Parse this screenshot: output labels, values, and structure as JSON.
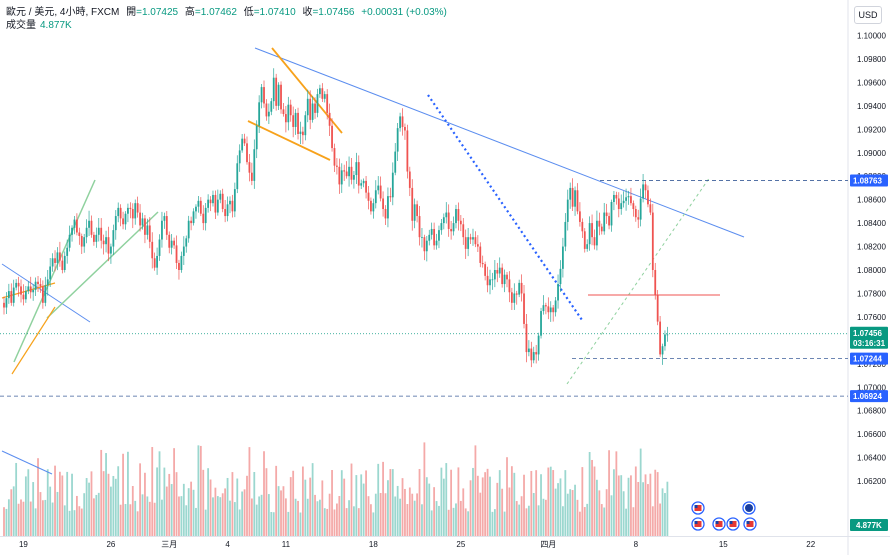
{
  "legend": {
    "symbol": "歐元 / 美元, 4小時, FXCM",
    "open_label": "開",
    "open": "=1.07425",
    "high_label": "高",
    "high": "=1.07462",
    "low_label": "低",
    "low": "=1.07410",
    "close_label": "收",
    "close": "=1.07456",
    "change": "+0.00031 (+0.03%)",
    "volume_label": "成交量",
    "volume_value": "4.877K"
  },
  "currency_unit": "USD",
  "colors": {
    "up": "#26a69a",
    "down": "#ef5350",
    "vol_up": "#9bd7cf",
    "vol_down": "#f4a9a8",
    "trendline": "#5b8def",
    "channel": "#8fd19e",
    "wedge": "#f7a21b",
    "tag_blue": "#2962ff",
    "tag_green": "#089981",
    "level_red": "#ef5350"
  },
  "chart_data": {
    "type": "candlestick",
    "y_axis": {
      "min": 1.06,
      "max": 1.1,
      "ticks": [
        "1.10000",
        "1.09800",
        "1.09600",
        "1.09400",
        "1.09200",
        "1.09000",
        "1.08800",
        "1.08600",
        "1.08400",
        "1.08200",
        "1.08000",
        "1.07800",
        "1.07600",
        "1.07400",
        "1.07200",
        "1.07000",
        "1.06800",
        "1.06600",
        "1.06400",
        "1.06200"
      ]
    },
    "x_axis": {
      "tick_labels": [
        {
          "label": "19",
          "bar": 8
        },
        {
          "label": "26",
          "bar": 44
        },
        {
          "label": "三月",
          "bar": 68
        },
        {
          "label": "4",
          "bar": 92
        },
        {
          "label": "11",
          "bar": 116
        },
        {
          "label": "18",
          "bar": 152
        },
        {
          "label": "25",
          "bar": 188
        },
        {
          "label": "四月",
          "bar": 224
        },
        {
          "label": "8",
          "bar": 260
        },
        {
          "label": "15",
          "bar": 296
        },
        {
          "label": "22",
          "bar": 332
        }
      ]
    },
    "closes": [
      1.0768,
      1.0776,
      1.0782,
      1.0772,
      1.0785,
      1.0789,
      1.0786,
      1.0779,
      1.0775,
      1.0782,
      1.0786,
      1.0781,
      1.0783,
      1.079,
      1.0788,
      1.0786,
      1.0772,
      1.0787,
      1.0792,
      1.0803,
      1.081,
      1.0806,
      1.0815,
      1.0808,
      1.08,
      1.0812,
      1.0819,
      1.083,
      1.0836,
      1.0843,
      1.0832,
      1.0829,
      1.082,
      1.0828,
      1.0836,
      1.0842,
      1.083,
      1.0824,
      1.083,
      1.0836,
      1.0825,
      1.0822,
      1.0828,
      1.0814,
      1.082,
      1.0834,
      1.0846,
      1.0853,
      1.0844,
      1.0839,
      1.0848,
      1.0853,
      1.0852,
      1.0844,
      1.0857,
      1.0849,
      1.0838,
      1.0844,
      1.083,
      1.0838,
      1.0824,
      1.081,
      1.0802,
      1.0812,
      1.0826,
      1.0842,
      1.0846,
      1.083,
      1.0819,
      1.0825,
      1.0821,
      1.0806,
      1.08,
      1.0812,
      1.082,
      1.0827,
      1.0842,
      1.084,
      1.085,
      1.0854,
      1.0859,
      1.0848,
      1.084,
      1.0853,
      1.086,
      1.0857,
      1.0864,
      1.0849,
      1.086,
      1.0865,
      1.0852,
      1.0846,
      1.0856,
      1.0859,
      1.085,
      1.0869,
      1.0891,
      1.0902,
      1.0912,
      1.0908,
      1.0892,
      1.0883,
      1.0876,
      1.0903,
      1.0923,
      1.0943,
      1.0956,
      1.0942,
      1.0931,
      1.0935,
      1.0944,
      1.0964,
      1.094,
      1.0958,
      1.0937,
      1.0933,
      1.0926,
      1.0941,
      1.0932,
      1.0922,
      1.0934,
      1.0916,
      1.0918,
      1.0915,
      1.0932,
      1.0946,
      1.0928,
      1.0942,
      1.0934,
      1.095,
      1.0955,
      1.0946,
      1.095,
      1.0934,
      1.0923,
      1.0904,
      1.0889,
      1.0888,
      1.0873,
      1.0885,
      1.0884,
      1.088,
      1.0888,
      1.0877,
      1.0881,
      1.0892,
      1.0872,
      1.0874,
      1.0876,
      1.0866,
      1.0859,
      1.085,
      1.0857,
      1.0868,
      1.0872,
      1.0861,
      1.0852,
      1.0844,
      1.0863,
      1.0862,
      1.0883,
      1.0901,
      1.0921,
      1.0931,
      1.0922,
      1.0919,
      1.0884,
      1.087,
      1.0842,
      1.0856,
      1.0846,
      1.0828,
      1.0828,
      1.0816,
      1.0825,
      1.083,
      1.0835,
      1.0821,
      1.0825,
      1.0834,
      1.084,
      1.0845,
      1.0849,
      1.0835,
      1.0833,
      1.084,
      1.0852,
      1.0842,
      1.0839,
      1.0828,
      1.0818,
      1.0828,
      1.0826,
      1.0828,
      1.0822,
      1.082,
      1.0806,
      1.0805,
      1.0795,
      1.0787,
      1.0792,
      1.0792,
      1.08,
      1.0797,
      1.0802,
      1.0788,
      1.0796,
      1.0792,
      1.0781,
      1.0772,
      1.078,
      1.0779,
      1.0789,
      1.078,
      1.0754,
      1.073,
      1.0733,
      1.0723,
      1.073,
      1.0728,
      1.0744,
      1.0765,
      1.077,
      1.0769,
      1.0764,
      1.0768,
      1.0764,
      1.0774,
      1.0788,
      1.0801,
      1.082,
      1.0841,
      1.086,
      1.087,
      1.0854,
      1.0868,
      1.085,
      1.0841,
      1.0833,
      1.0818,
      1.0822,
      1.084,
      1.0828,
      1.0821,
      1.0842,
      1.0837,
      1.0833,
      1.0849,
      1.0846,
      1.0838,
      1.0858,
      1.0864,
      1.0861,
      1.0852,
      1.0857,
      1.0859,
      1.0862,
      1.0863,
      1.0857,
      1.0852,
      1.0845,
      1.0843,
      1.0861,
      1.0873,
      1.0868,
      1.0856,
      1.0849,
      1.08,
      1.0779,
      1.0756,
      1.0728,
      1.0735,
      1.0745,
      1.0745
    ],
    "drawings": {
      "horizontal_levels": [
        "1.08763",
        "1.07244",
        "1.06924"
      ],
      "red_level": "1.07900",
      "last_price": "1.07456",
      "countdown": "03:16:31",
      "volume_tag": "4.877K"
    }
  }
}
